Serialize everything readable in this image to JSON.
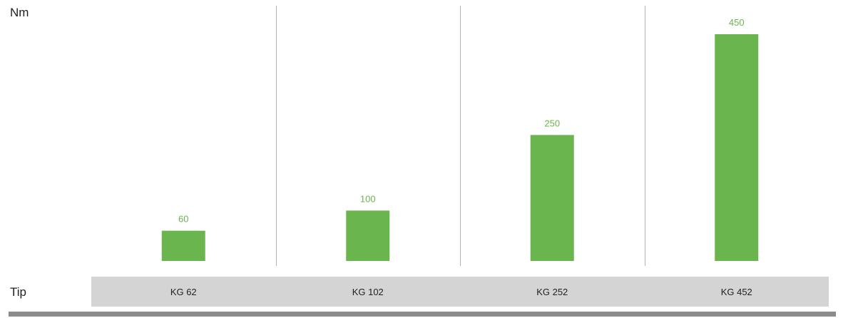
{
  "chart_data": {
    "type": "bar",
    "ylabel": "Nm",
    "xlabel": "Tip",
    "categories": [
      "KG 62",
      "KG 102",
      "KG 252",
      "KG 452"
    ],
    "values": [
      60,
      100,
      250,
      450
    ],
    "value_labels": [
      "60",
      "100",
      "250",
      "450"
    ],
    "ylim": [
      0,
      500
    ],
    "grid": false,
    "colors": {
      "bar": "#6ab54e",
      "value_label": "#6ab54e",
      "separator": "#b3b3b3",
      "category_band": "#d4d4d4",
      "bottom_rule": "#8c8c8c"
    }
  }
}
